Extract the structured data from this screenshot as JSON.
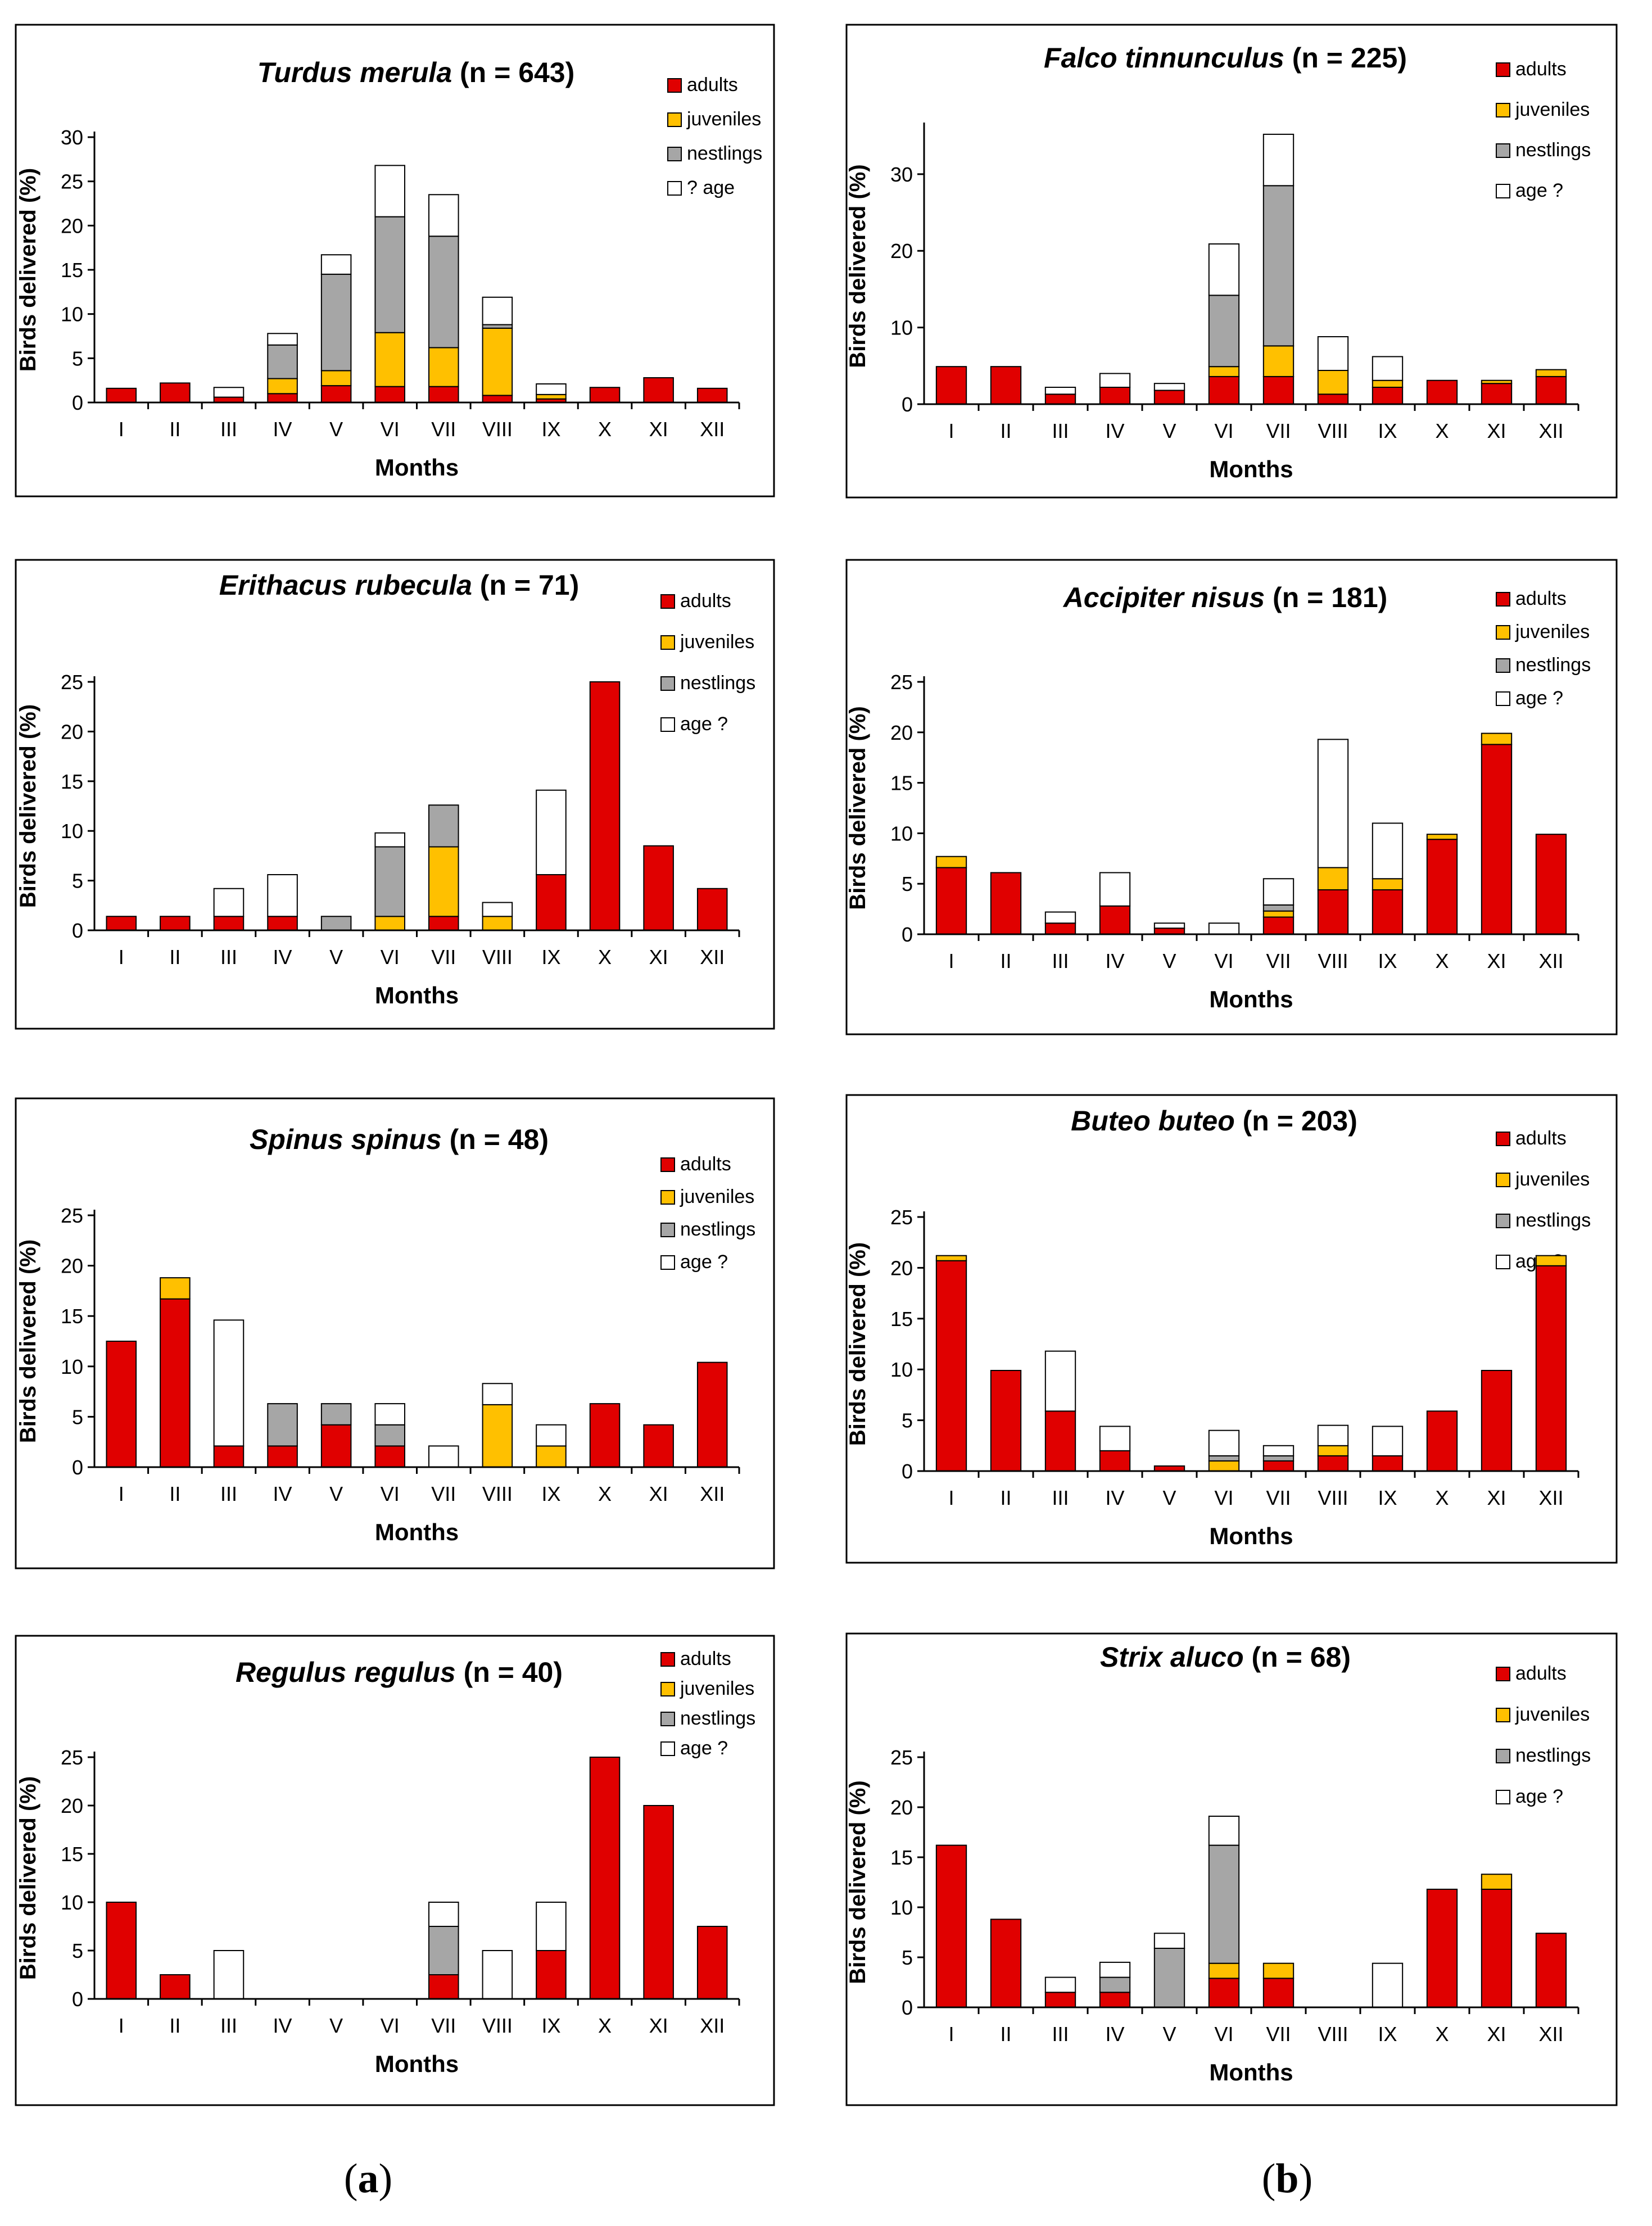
{
  "colors": {
    "adults": "#e00000",
    "juveniles": "#ffc000",
    "nestlings": "#a6a6a6",
    "unknown": "#ffffff",
    "border": "#000000"
  },
  "panel_labels": [
    {
      "open": "(",
      "letter": "a",
      "close": ")"
    },
    {
      "open": "(",
      "letter": "b",
      "close": ")"
    }
  ],
  "chart_data": [
    {
      "type": "bar",
      "stacked": true,
      "title_species": "Turdus merula",
      "title_count": " (n = 643)",
      "xlabel": "Months",
      "ylabel": "Birds delivered (%)",
      "ylim": [
        0,
        30
      ],
      "yticks": [
        0,
        5,
        10,
        15,
        20,
        25,
        30
      ],
      "categories": [
        "I",
        "II",
        "III",
        "IV",
        "V",
        "VI",
        "VII",
        "VIII",
        "IX",
        "X",
        "XI",
        "XII"
      ],
      "legend": [
        "adults",
        "juveniles",
        "nestlings",
        "? age"
      ],
      "series": [
        {
          "name": "adults",
          "values": [
            1.6,
            2.2,
            0.6,
            1.0,
            1.9,
            1.8,
            1.8,
            0.8,
            0.4,
            1.7,
            2.8,
            1.6
          ]
        },
        {
          "name": "juveniles",
          "values": [
            0,
            0,
            0,
            1.7,
            1.7,
            6.1,
            4.4,
            7.6,
            0.5,
            0,
            0,
            0
          ]
        },
        {
          "name": "nestlings",
          "values": [
            0,
            0,
            0,
            3.8,
            10.9,
            13.1,
            12.6,
            0.4,
            0,
            0,
            0,
            0
          ]
        },
        {
          "name": "? age",
          "values": [
            0,
            0,
            1.1,
            1.3,
            2.2,
            5.8,
            4.7,
            3.1,
            1.2,
            0,
            0,
            0
          ]
        }
      ]
    },
    {
      "type": "bar",
      "stacked": true,
      "title_species": "Falco tinnunculus",
      "title_count": " (n = 225)",
      "xlabel": "Months",
      "ylabel": "Birds delivered (%)",
      "ylim": [
        0,
        36
      ],
      "yticks": [
        0,
        10,
        20,
        30
      ],
      "categories": [
        "I",
        "II",
        "III",
        "IV",
        "V",
        "VI",
        "VII",
        "VIII",
        "IX",
        "X",
        "XI",
        "XII"
      ],
      "legend": [
        "adults",
        "juveniles",
        "nestlings",
        "age ?"
      ],
      "series": [
        {
          "name": "adults",
          "values": [
            4.9,
            4.9,
            1.3,
            2.2,
            1.8,
            3.6,
            3.6,
            1.3,
            2.2,
            3.1,
            2.7,
            3.6
          ]
        },
        {
          "name": "juveniles",
          "values": [
            0,
            0,
            0,
            0,
            0,
            1.3,
            4.0,
            3.1,
            0.9,
            0,
            0.4,
            0.9
          ]
        },
        {
          "name": "nestlings",
          "values": [
            0,
            0,
            0,
            0,
            0,
            9.3,
            20.9,
            0,
            0,
            0,
            0,
            0
          ]
        },
        {
          "name": "age ?",
          "values": [
            0,
            0,
            0.9,
            1.8,
            0.9,
            6.7,
            6.7,
            4.4,
            3.1,
            0,
            0,
            0
          ]
        }
      ]
    },
    {
      "type": "bar",
      "stacked": true,
      "title_species": "Erithacus  rubecula",
      "title_count": " (n = 71)",
      "xlabel": "Months",
      "ylabel": "Birds delivered (%)",
      "ylim": [
        0,
        25
      ],
      "yticks": [
        0,
        5,
        10,
        15,
        20,
        25
      ],
      "categories": [
        "I",
        "II",
        "III",
        "IV",
        "V",
        "VI",
        "VII",
        "VIII",
        "IX",
        "X",
        "XI",
        "XII"
      ],
      "legend": [
        "adults",
        "juveniles",
        "nestlings",
        "age ?"
      ],
      "series": [
        {
          "name": "adults",
          "values": [
            1.4,
            1.4,
            1.4,
            1.4,
            0,
            0,
            1.4,
            0,
            5.6,
            25.0,
            8.5,
            4.2
          ]
        },
        {
          "name": "juveniles",
          "values": [
            0,
            0,
            0,
            0,
            0,
            1.4,
            7.0,
            1.4,
            0,
            0,
            0,
            0
          ]
        },
        {
          "name": "nestlings",
          "values": [
            0,
            0,
            0,
            0,
            1.4,
            7.0,
            4.2,
            0,
            0,
            0,
            0,
            0
          ]
        },
        {
          "name": "age ?",
          "values": [
            0,
            0,
            2.8,
            4.2,
            0,
            1.4,
            0,
            1.4,
            8.5,
            0,
            0,
            0
          ]
        }
      ]
    },
    {
      "type": "bar",
      "stacked": true,
      "title_species": "Accipiter nisus",
      "title_count": " (n = 181)",
      "xlabel": "Months",
      "ylabel": "Birds delivered (%)",
      "ylim": [
        0,
        25
      ],
      "yticks": [
        0,
        5,
        10,
        15,
        20,
        25
      ],
      "categories": [
        "I",
        "II",
        "III",
        "IV",
        "V",
        "VI",
        "VII",
        "VIII",
        "IX",
        "X",
        "XI",
        "XII"
      ],
      "legend": [
        "adults",
        "juveniles",
        "nestlings",
        "age ?"
      ],
      "series": [
        {
          "name": "adults",
          "values": [
            6.6,
            6.1,
            1.1,
            2.8,
            0.6,
            0,
            1.7,
            4.4,
            4.4,
            9.4,
            18.8,
            9.9
          ]
        },
        {
          "name": "juveniles",
          "values": [
            1.1,
            0,
            0,
            0,
            0,
            0,
            0.6,
            2.2,
            1.1,
            0.5,
            1.1,
            0
          ]
        },
        {
          "name": "nestlings",
          "values": [
            0,
            0,
            0,
            0,
            0,
            0,
            0.6,
            0,
            0,
            0,
            0,
            0
          ]
        },
        {
          "name": "age ?",
          "values": [
            0,
            0,
            1.1,
            3.3,
            0.5,
            1.1,
            2.6,
            12.7,
            5.5,
            0,
            0,
            0
          ]
        }
      ]
    },
    {
      "type": "bar",
      "stacked": true,
      "title_species": "Spinus spinus",
      "title_count": " (n = 48)",
      "xlabel": "Months",
      "ylabel": "Birds delivered (%)",
      "ylim": [
        0,
        25
      ],
      "yticks": [
        0,
        5,
        10,
        15,
        20,
        25
      ],
      "categories": [
        "I",
        "II",
        "III",
        "IV",
        "V",
        "VI",
        "VII",
        "VIII",
        "IX",
        "X",
        "XI",
        "XII"
      ],
      "legend": [
        "adults",
        "juveniles",
        "nestlings",
        "age ?"
      ],
      "series": [
        {
          "name": "adults",
          "values": [
            12.5,
            16.7,
            2.1,
            2.1,
            4.2,
            2.1,
            0,
            0,
            0,
            6.3,
            4.2,
            10.4
          ]
        },
        {
          "name": "juveniles",
          "values": [
            0,
            2.1,
            0,
            0,
            0,
            0,
            0,
            6.2,
            2.1,
            0,
            0,
            0
          ]
        },
        {
          "name": "nestlings",
          "values": [
            0,
            0,
            0,
            4.2,
            2.1,
            2.1,
            0,
            0,
            0,
            0,
            0,
            0
          ]
        },
        {
          "name": "age ?",
          "values": [
            0,
            0,
            12.5,
            0,
            0,
            2.1,
            2.1,
            2.1,
            2.1,
            0,
            0,
            0
          ]
        }
      ]
    },
    {
      "type": "bar",
      "stacked": true,
      "title_species": "Buteo buteo",
      "title_count": " (n = 203)",
      "xlabel": "Months",
      "ylabel": "Birds delivered (%)",
      "ylim": [
        0,
        25
      ],
      "yticks": [
        0,
        5,
        10,
        15,
        20,
        25
      ],
      "categories": [
        "I",
        "II",
        "III",
        "IV",
        "V",
        "VI",
        "VII",
        "VIII",
        "IX",
        "X",
        "XI",
        "XII"
      ],
      "legend": [
        "adults",
        "juveniles",
        "nestlings",
        "age ?"
      ],
      "series": [
        {
          "name": "adults",
          "values": [
            20.7,
            9.9,
            5.9,
            2.0,
            0.5,
            0,
            1.0,
            1.5,
            1.5,
            5.9,
            9.9,
            20.2
          ]
        },
        {
          "name": "juveniles",
          "values": [
            0.5,
            0,
            0,
            0,
            0,
            1.0,
            0,
            1.0,
            0,
            0,
            0,
            1.0
          ]
        },
        {
          "name": "nestlings",
          "values": [
            0,
            0,
            0,
            0,
            0,
            0.5,
            0.5,
            0,
            0,
            0,
            0,
            0
          ]
        },
        {
          "name": "age ?",
          "values": [
            0,
            0,
            5.9,
            2.4,
            0,
            2.5,
            1.0,
            2.0,
            2.9,
            0,
            0,
            0
          ]
        }
      ]
    },
    {
      "type": "bar",
      "stacked": true,
      "title_species": "Regulus regulus",
      "title_count": " (n = 40)",
      "xlabel": "Months",
      "ylabel": "Birds delivered (%)",
      "ylim": [
        0,
        25
      ],
      "yticks": [
        0,
        5,
        10,
        15,
        20,
        25
      ],
      "categories": [
        "I",
        "II",
        "III",
        "IV",
        "V",
        "VI",
        "VII",
        "VIII",
        "IX",
        "X",
        "XI",
        "XII"
      ],
      "legend": [
        "adults",
        "juveniles",
        "nestlings",
        "age ?"
      ],
      "series": [
        {
          "name": "adults",
          "values": [
            10.0,
            2.5,
            0,
            0,
            0,
            0,
            2.5,
            0,
            5.0,
            25.0,
            20.0,
            7.5
          ]
        },
        {
          "name": "juveniles",
          "values": [
            0,
            0,
            0,
            0,
            0,
            0,
            0,
            0,
            0,
            0,
            0,
            0
          ]
        },
        {
          "name": "nestlings",
          "values": [
            0,
            0,
            0,
            0,
            0,
            0,
            5.0,
            0,
            0,
            0,
            0,
            0
          ]
        },
        {
          "name": "age ?",
          "values": [
            0,
            0,
            5.0,
            0,
            0,
            0,
            2.5,
            5.0,
            5.0,
            0,
            0,
            0
          ]
        }
      ]
    },
    {
      "type": "bar",
      "stacked": true,
      "title_species": "Strix aluco",
      "title_count": " (n = 68)",
      "xlabel": "Months",
      "ylabel": "Birds delivered (%)",
      "ylim": [
        0,
        25
      ],
      "yticks": [
        0,
        5,
        10,
        15,
        20,
        25
      ],
      "categories": [
        "I",
        "II",
        "III",
        "IV",
        "V",
        "VI",
        "VII",
        "VIII",
        "IX",
        "X",
        "XI",
        "XII"
      ],
      "legend": [
        "adults",
        "juveniles",
        "nestlings",
        "age ?"
      ],
      "series": [
        {
          "name": "adults",
          "values": [
            16.2,
            8.8,
            1.5,
            1.5,
            0,
            2.9,
            2.9,
            0,
            0,
            11.8,
            11.8,
            7.4
          ]
        },
        {
          "name": "juveniles",
          "values": [
            0,
            0,
            0,
            0,
            0,
            1.5,
            1.5,
            0,
            0,
            0,
            1.5,
            0
          ]
        },
        {
          "name": "nestlings",
          "values": [
            0,
            0,
            0,
            1.5,
            5.9,
            11.8,
            0,
            0,
            0,
            0,
            0,
            0
          ]
        },
        {
          "name": "age ?",
          "values": [
            0,
            0,
            1.5,
            1.5,
            1.5,
            2.9,
            0,
            0,
            4.4,
            0,
            0,
            0
          ]
        }
      ]
    }
  ]
}
